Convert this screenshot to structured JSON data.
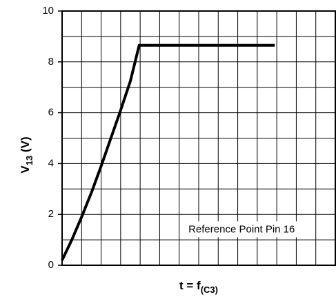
{
  "chart_data": {
    "type": "line",
    "title": "",
    "xlabel": {
      "main": "t = f",
      "sub": "(C3)"
    },
    "ylabel": {
      "main": "V",
      "sub": "13",
      "suffix": " (V)"
    },
    "ylim": [
      0,
      10
    ],
    "yticks": [
      "0",
      "2",
      "4",
      "6",
      "8",
      "10"
    ],
    "xlim": [
      0,
      14
    ],
    "x_tick_labels": false,
    "grid": true,
    "grid_x_divisions": 14,
    "grid_y_divisions": 10,
    "series": [
      {
        "line_color": "#000000",
        "points": [
          {
            "x": 0.0,
            "y": 0.2
          },
          {
            "x": 0.5,
            "y": 1.0
          },
          {
            "x": 1.0,
            "y": 1.9
          },
          {
            "x": 1.5,
            "y": 2.85
          },
          {
            "x": 2.0,
            "y": 3.9
          },
          {
            "x": 2.5,
            "y": 5.0
          },
          {
            "x": 3.0,
            "y": 6.1
          },
          {
            "x": 3.5,
            "y": 7.25
          },
          {
            "x": 3.95,
            "y": 8.65
          },
          {
            "x": 10.9,
            "y": 8.65
          }
        ]
      }
    ],
    "annotation": {
      "text": "Reference Point Pin 16",
      "x": 9.2,
      "y": 1.4
    }
  }
}
